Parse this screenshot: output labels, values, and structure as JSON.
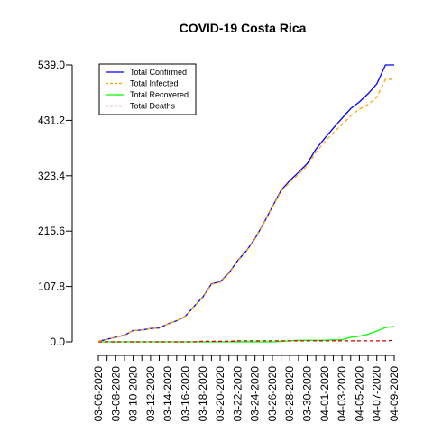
{
  "chart_data": {
    "type": "line",
    "title": "COVID-19 Costa Rica",
    "xlabel": "",
    "ylabel": "",
    "ylim": [
      0,
      539
    ],
    "y_ticks": [
      "0.0",
      "107.8",
      "215.6",
      "323.4",
      "431.2",
      "539.0"
    ],
    "x_tick_labels": [
      "03-06-2020",
      "03-08-2020",
      "03-10-2020",
      "03-12-2020",
      "03-14-2020",
      "03-16-2020",
      "03-18-2020",
      "03-20-2020",
      "03-22-2020",
      "03-24-2020",
      "03-26-2020",
      "03-28-2020",
      "03-30-2020",
      "04-01-2020",
      "04-03-2020",
      "04-05-2020",
      "04-07-2020",
      "04-09-2020"
    ],
    "x": [
      "03-06-2020",
      "03-07-2020",
      "03-08-2020",
      "03-09-2020",
      "03-10-2020",
      "03-11-2020",
      "03-12-2020",
      "03-13-2020",
      "03-14-2020",
      "03-15-2020",
      "03-16-2020",
      "03-17-2020",
      "03-18-2020",
      "03-19-2020",
      "03-20-2020",
      "03-21-2020",
      "03-22-2020",
      "03-23-2020",
      "03-24-2020",
      "03-25-2020",
      "03-26-2020",
      "03-27-2020",
      "03-28-2020",
      "03-29-2020",
      "03-30-2020",
      "03-31-2020",
      "04-01-2020",
      "04-02-2020",
      "04-03-2020",
      "04-04-2020",
      "04-05-2020",
      "04-06-2020",
      "04-07-2020",
      "04-08-2020",
      "04-09-2020"
    ],
    "series": [
      {
        "name": "Total Confirmed",
        "color": "#0000FF",
        "dash": "",
        "values": [
          1,
          5,
          9,
          13,
          22,
          23,
          26,
          27,
          35,
          41,
          50,
          69,
          87,
          113,
          117,
          134,
          158,
          177,
          201,
          231,
          263,
          295,
          314,
          330,
          347,
          375,
          396,
          416,
          435,
          454,
          467,
          483,
          502,
          539,
          539
        ]
      },
      {
        "name": "Total Infected",
        "color": "#FFA500",
        "dash": "4,3",
        "values": [
          1,
          5,
          9,
          13,
          22,
          23,
          26,
          27,
          35,
          41,
          50,
          69,
          86,
          112,
          116,
          133,
          157,
          176,
          200,
          230,
          262,
          293,
          311,
          326,
          343,
          369,
          389,
          407,
          423,
          440,
          453,
          462,
          476,
          511,
          511
        ]
      },
      {
        "name": "Total Recovered",
        "color": "#00FF00",
        "dash": "",
        "values": [
          0,
          0,
          0,
          0,
          0,
          0,
          0,
          0,
          0,
          0,
          0,
          0,
          0,
          0,
          0,
          0,
          0,
          0,
          0,
          0,
          0,
          1,
          2,
          3,
          3,
          3,
          3,
          4,
          4,
          9,
          11,
          15,
          21,
          28,
          30
        ]
      },
      {
        "name": "Total Deaths",
        "color": "#CD0000",
        "dash": "4,3",
        "values": [
          0,
          0,
          0,
          0,
          0,
          0,
          0,
          0,
          0,
          0,
          0,
          0,
          1,
          1,
          1,
          1,
          2,
          2,
          2,
          2,
          2,
          2,
          2,
          2,
          2,
          2,
          2,
          2,
          2,
          2,
          2,
          2,
          2,
          2,
          3
        ]
      }
    ],
    "legend_position": "top-left",
    "grid": false
  }
}
